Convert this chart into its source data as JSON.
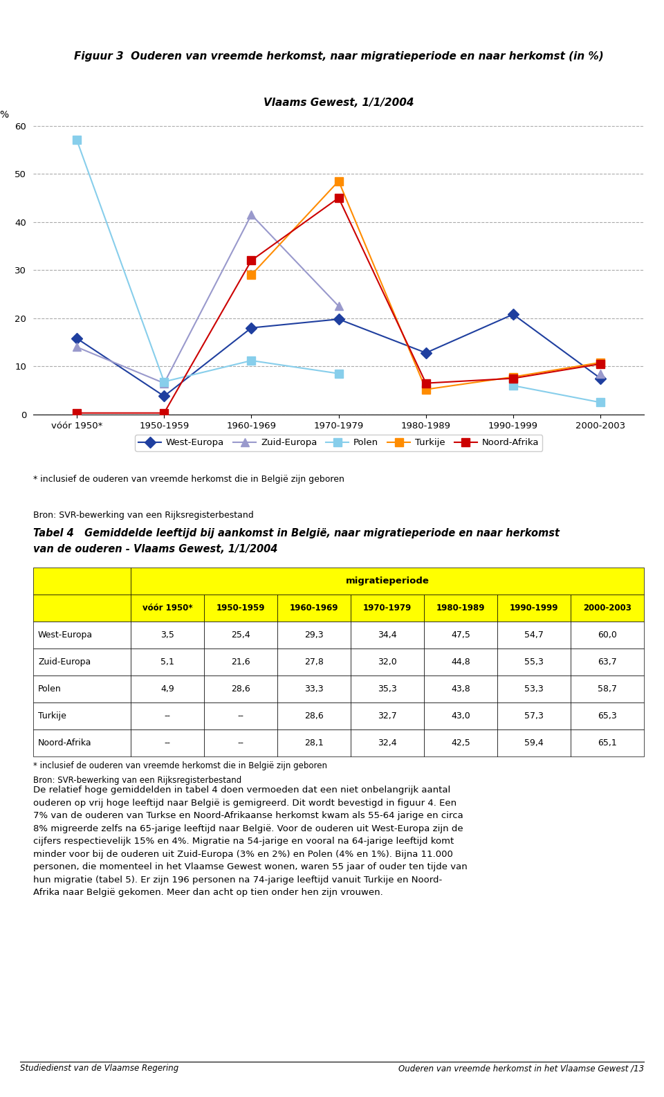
{
  "title_line1": "Figuur 3  Ouderen van vreemde herkomst, naar migratieperiode en naar herkomst (in %)",
  "title_line2": "Vlaams Gewest, 1/1/2004",
  "x_labels": [
    "vóór 1950*",
    "1950-1959",
    "1960-1969",
    "1970-1979",
    "1980-1989",
    "1990-1999",
    "2000-2003"
  ],
  "ylabel": "%",
  "ylim": [
    0,
    60
  ],
  "yticks": [
    0,
    10,
    20,
    30,
    40,
    50,
    60
  ],
  "series": {
    "West-Europa": {
      "values": [
        15.8,
        3.8,
        18.0,
        19.8,
        12.8,
        20.8,
        7.5
      ],
      "color": "#1F3F9F",
      "marker": "D",
      "markersize": 8,
      "linewidth": 1.5
    },
    "Zuid-Europa": {
      "values": [
        14.0,
        6.5,
        41.5,
        22.5,
        null,
        null,
        8.5
      ],
      "color": "#9999CC",
      "marker": "^",
      "markersize": 9,
      "linewidth": 1.5
    },
    "Polen": {
      "values": [
        57.0,
        6.8,
        11.2,
        8.5,
        null,
        6.0,
        2.5
      ],
      "color": "#87CEEB",
      "marker": "s",
      "markersize": 8,
      "linewidth": 1.5
    },
    "Turkije": {
      "values": [
        null,
        null,
        29.0,
        48.5,
        5.2,
        7.8,
        10.8
      ],
      "color": "#FF8C00",
      "marker": "s",
      "markersize": 8,
      "linewidth": 1.5
    },
    "Noord-Afrika": {
      "values": [
        0.3,
        0.3,
        32.0,
        45.0,
        6.5,
        7.5,
        10.5
      ],
      "color": "#CC0000",
      "marker": "s",
      "markersize": 8,
      "linewidth": 1.5
    }
  },
  "footnote1": "* inclusief de ouderen van vreemde herkomst die in België zijn geboren",
  "footnote2": "Bron: SVR-bewerking van een Rijksregisterbestand",
  "table_title_line1": "Tabel 4   Gemiddelde leeftijd bij aankomst in België, naar migratieperiode en naar herkomst",
  "table_title_line2": "van de ouderen - Vlaams Gewest, 1/1/2004",
  "table_col_header": [
    "vóór 1950*",
    "1950-1959",
    "1960-1969",
    "1970-1979",
    "1980-1989",
    "1990-1999",
    "2000-2003"
  ],
  "table_row_labels": [
    "West-Europa",
    "Zuid-Europa",
    "Polen",
    "Turkije",
    "Noord-Afrika"
  ],
  "table_data": [
    [
      "3,5",
      "25,4",
      "29,3",
      "34,4",
      "47,5",
      "54,7",
      "60,0"
    ],
    [
      "5,1",
      "21,6",
      "27,8",
      "32,0",
      "44,8",
      "55,3",
      "63,7"
    ],
    [
      "4,9",
      "28,6",
      "33,3",
      "35,3",
      "43,8",
      "53,3",
      "58,7"
    ],
    [
      "--",
      "--",
      "28,6",
      "32,7",
      "43,0",
      "57,3",
      "65,3"
    ],
    [
      "--",
      "--",
      "28,1",
      "32,4",
      "42,5",
      "59,4",
      "65,1"
    ]
  ],
  "body_text": "De relatief hoge gemiddelden in tabel 4 doen vermoeden dat een niet onbelangrijk aantal\nouderen op vrij hoge leeftijd naar België is gemigreerd. Dit wordt bevestigd in figuur 4. Een\n7% van de ouderen van Turkse en Noord-Afrikaanse herkomst kwam als 55-64 jarige en circa\n8% migreerde zelfs na 65-jarige leeftijd naar België. Voor de ouderen uit West-Europa zijn de\ncijfers respectievelijk 15% en 4%. Migratie na 54-jarige en vooral na 64-jarige leeftijd komt\nminder voor bij de ouderen uit Zuid-Europa (3% en 2%) en Polen (4% en 1%). Bijna 11.000\npersonen, die momenteel in het Vlaamse Gewest wonen, waren 55 jaar of ouder ten tijde van\nhun migratie (tabel 5). Er zijn 196 personen na 74-jarige leeftijd vanuit Turkije en Noord-\nAfrika naar België gekomen. Meer dan acht op tien onder hen zijn vrouwen.",
  "footer_left": "Studiedienst van de Vlaamse Regering",
  "footer_right": "Ouderen van vreemde herkomst in het Vlaamse Gewest /13",
  "background_color": "#FFFFFF",
  "yellow": "#FFFF00",
  "white": "#FFFFFF"
}
